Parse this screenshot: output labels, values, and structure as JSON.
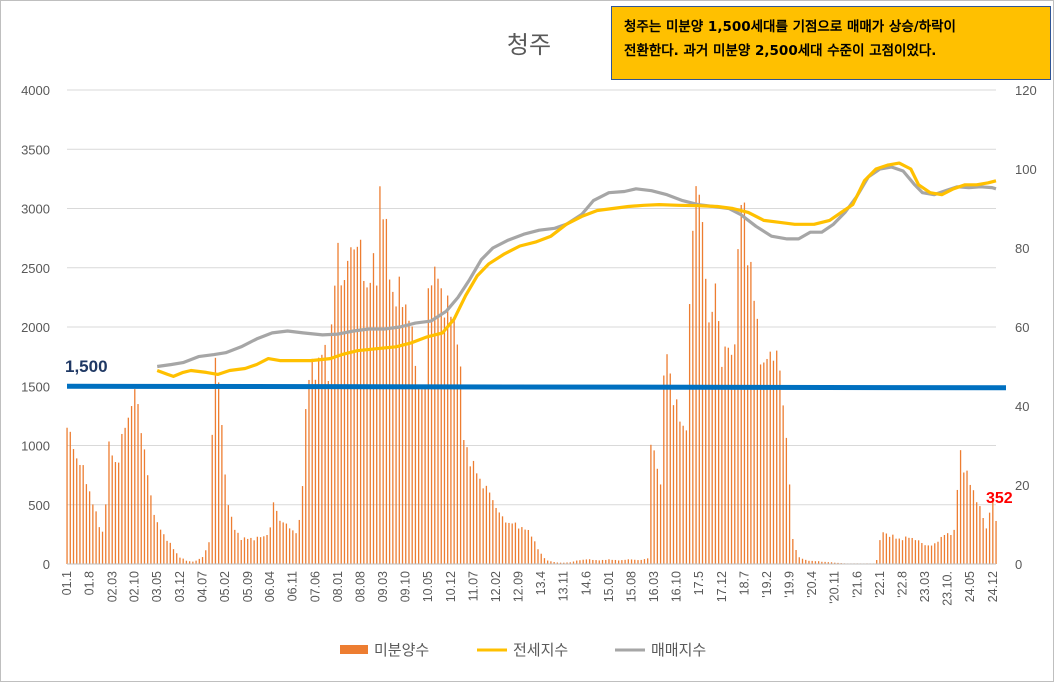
{
  "annotation": {
    "line1": "청주는 미분양 1,500세대를 기점으로 매매가 상승/하락이",
    "line2": "전환한다. 과거 미분양 2,500세대 수준이 고점이었다."
  },
  "chart_data": {
    "type": "bar+line",
    "title": "청주",
    "y_left": {
      "min": 0,
      "max": 4000,
      "ticks": [
        "0",
        "500",
        "1000",
        "1500",
        "2000",
        "2500",
        "3000",
        "3500",
        "4000"
      ]
    },
    "y_right": {
      "min": 0,
      "max": 120,
      "ticks": [
        "0",
        "20",
        "40",
        "60",
        "80",
        "100",
        "120"
      ]
    },
    "x_range": [
      2001.0,
      2025.0
    ],
    "x_ticks": [
      {
        "t": 2001.0,
        "label": "01.1"
      },
      {
        "t": 2001.58,
        "label": "01.8"
      },
      {
        "t": 2002.17,
        "label": "02.03"
      },
      {
        "t": 2002.75,
        "label": "02.10"
      },
      {
        "t": 2003.33,
        "label": "03.05"
      },
      {
        "t": 2003.92,
        "label": "03.12"
      },
      {
        "t": 2004.5,
        "label": "04.07"
      },
      {
        "t": 2005.08,
        "label": "05.02"
      },
      {
        "t": 2005.67,
        "label": "05.09"
      },
      {
        "t": 2006.25,
        "label": "06.04"
      },
      {
        "t": 2006.83,
        "label": "06.11"
      },
      {
        "t": 2007.42,
        "label": "07.06"
      },
      {
        "t": 2008.0,
        "label": "08.01"
      },
      {
        "t": 2008.58,
        "label": "08.08"
      },
      {
        "t": 2009.17,
        "label": "09.03"
      },
      {
        "t": 2009.75,
        "label": "09.10"
      },
      {
        "t": 2010.33,
        "label": "10.05"
      },
      {
        "t": 2010.92,
        "label": "10.12"
      },
      {
        "t": 2011.5,
        "label": "11.07"
      },
      {
        "t": 2012.08,
        "label": "12.02"
      },
      {
        "t": 2012.67,
        "label": "12.09"
      },
      {
        "t": 2013.25,
        "label": "13.4"
      },
      {
        "t": 2013.83,
        "label": "13.11"
      },
      {
        "t": 2014.42,
        "label": "14.6"
      },
      {
        "t": 2015.0,
        "label": "15.01"
      },
      {
        "t": 2015.58,
        "label": "15.08"
      },
      {
        "t": 2016.17,
        "label": "16.03"
      },
      {
        "t": 2016.75,
        "label": "16.10"
      },
      {
        "t": 2017.33,
        "label": "17.5"
      },
      {
        "t": 2017.92,
        "label": "17.12"
      },
      {
        "t": 2018.5,
        "label": "18.7"
      },
      {
        "t": 2019.08,
        "label": "'19.2"
      },
      {
        "t": 2019.67,
        "label": "'19.9"
      },
      {
        "t": 2020.25,
        "label": "'20.4"
      },
      {
        "t": 2020.83,
        "label": "'20.11"
      },
      {
        "t": 2021.42,
        "label": "'21.6"
      },
      {
        "t": 2022.0,
        "label": "'22.1"
      },
      {
        "t": 2022.58,
        "label": "'22.8"
      },
      {
        "t": 2023.17,
        "label": "23.03"
      },
      {
        "t": 2023.75,
        "label": "23.10."
      },
      {
        "t": 2024.33,
        "label": "24.05"
      },
      {
        "t": 2024.92,
        "label": "24.12"
      }
    ],
    "unsold_series": {
      "name": "미분양수",
      "color": "#ed7d31",
      "points": [
        [
          2001.0,
          1150
        ],
        [
          2001.2,
          950
        ],
        [
          2001.4,
          800
        ],
        [
          2001.6,
          600
        ],
        [
          2001.8,
          350
        ],
        [
          2001.95,
          250
        ],
        [
          2002.1,
          1050
        ],
        [
          2002.3,
          800
        ],
        [
          2002.5,
          1200
        ],
        [
          2002.65,
          1300
        ],
        [
          2002.8,
          1480
        ],
        [
          2002.95,
          1050
        ],
        [
          2003.1,
          700
        ],
        [
          2003.3,
          350
        ],
        [
          2003.5,
          250
        ],
        [
          2003.7,
          150
        ],
        [
          2003.9,
          60
        ],
        [
          2004.1,
          25
        ],
        [
          2004.3,
          20
        ],
        [
          2004.5,
          60
        ],
        [
          2004.7,
          200
        ],
        [
          2004.8,
          1950
        ],
        [
          2004.95,
          1400
        ],
        [
          2005.1,
          650
        ],
        [
          2005.3,
          300
        ],
        [
          2005.5,
          220
        ],
        [
          2005.7,
          210
        ],
        [
          2005.9,
          220
        ],
        [
          2006.1,
          230
        ],
        [
          2006.25,
          300
        ],
        [
          2006.35,
          550
        ],
        [
          2006.45,
          400
        ],
        [
          2006.6,
          340
        ],
        [
          2006.8,
          300
        ],
        [
          2006.95,
          250
        ],
        [
          2007.05,
          450
        ],
        [
          2007.2,
          1550
        ],
        [
          2007.4,
          1650
        ],
        [
          2007.6,
          1800
        ],
        [
          2007.75,
          1650
        ],
        [
          2007.9,
          2300
        ],
        [
          2008.0,
          2580
        ],
        [
          2008.15,
          2400
        ],
        [
          2008.3,
          2550
        ],
        [
          2008.45,
          2800
        ],
        [
          2008.55,
          2700
        ],
        [
          2008.7,
          2300
        ],
        [
          2008.85,
          2500
        ],
        [
          2009.0,
          2400
        ],
        [
          2009.1,
          3350
        ],
        [
          2009.25,
          2700
        ],
        [
          2009.4,
          2300
        ],
        [
          2009.6,
          2250
        ],
        [
          2009.8,
          2200
        ],
        [
          2009.95,
          1800
        ],
        [
          2010.1,
          1500
        ],
        [
          2010.25,
          1450
        ],
        [
          2010.35,
          2500
        ],
        [
          2010.5,
          2450
        ],
        [
          2010.65,
          2300
        ],
        [
          2010.8,
          2200
        ],
        [
          2010.95,
          2050
        ],
        [
          2011.1,
          2000
        ],
        [
          2011.25,
          1050
        ],
        [
          2011.4,
          900
        ],
        [
          2011.6,
          750
        ],
        [
          2011.8,
          650
        ],
        [
          2012.0,
          550
        ],
        [
          2012.2,
          400
        ],
        [
          2012.4,
          350
        ],
        [
          2012.6,
          330
        ],
        [
          2012.8,
          300
        ],
        [
          2013.0,
          250
        ],
        [
          2013.2,
          100
        ],
        [
          2013.4,
          30
        ],
        [
          2013.6,
          15
        ],
        [
          2013.8,
          10
        ],
        [
          2014.0,
          15
        ],
        [
          2014.2,
          30
        ],
        [
          2014.4,
          40
        ],
        [
          2014.6,
          35
        ],
        [
          2014.8,
          30
        ],
        [
          2015.0,
          40
        ],
        [
          2015.2,
          30
        ],
        [
          2015.4,
          35
        ],
        [
          2015.6,
          40
        ],
        [
          2015.8,
          30
        ],
        [
          2016.0,
          50
        ],
        [
          2016.1,
          1150
        ],
        [
          2016.2,
          850
        ],
        [
          2016.35,
          700
        ],
        [
          2016.45,
          1900
        ],
        [
          2016.6,
          1550
        ],
        [
          2016.75,
          1300
        ],
        [
          2016.9,
          1150
        ],
        [
          2017.0,
          1200
        ],
        [
          2017.15,
          2750
        ],
        [
          2017.3,
          3450
        ],
        [
          2017.45,
          2550
        ],
        [
          2017.6,
          2050
        ],
        [
          2017.75,
          2300
        ],
        [
          2017.9,
          1750
        ],
        [
          2018.05,
          1850
        ],
        [
          2018.2,
          1650
        ],
        [
          2018.4,
          3050
        ],
        [
          2018.55,
          2850
        ],
        [
          2018.7,
          2350
        ],
        [
          2018.85,
          1950
        ],
        [
          2019.0,
          1650
        ],
        [
          2019.15,
          1750
        ],
        [
          2019.3,
          1850
        ],
        [
          2019.45,
          1500
        ],
        [
          2019.6,
          1050
        ],
        [
          2019.75,
          200
        ],
        [
          2019.9,
          60
        ],
        [
          2020.1,
          30
        ],
        [
          2020.3,
          25
        ],
        [
          2020.5,
          20
        ],
        [
          2020.7,
          15
        ],
        [
          2020.9,
          10
        ],
        [
          2021.1,
          5
        ],
        [
          2021.3,
          5
        ],
        [
          2021.5,
          5
        ],
        [
          2021.7,
          5
        ],
        [
          2021.9,
          5
        ],
        [
          2022.05,
          280
        ],
        [
          2022.2,
          250
        ],
        [
          2022.4,
          220
        ],
        [
          2022.6,
          210
        ],
        [
          2022.8,
          230
        ],
        [
          2023.0,
          190
        ],
        [
          2023.2,
          160
        ],
        [
          2023.35,
          150
        ],
        [
          2023.5,
          200
        ],
        [
          2023.65,
          240
        ],
        [
          2023.8,
          260
        ],
        [
          2023.95,
          280
        ],
        [
          2024.05,
          970
        ],
        [
          2024.2,
          800
        ],
        [
          2024.35,
          650
        ],
        [
          2024.5,
          560
        ],
        [
          2024.6,
          450
        ],
        [
          2024.75,
          300
        ],
        [
          2024.9,
          580
        ],
        [
          2025.0,
          352
        ]
      ]
    },
    "jeonse_index": {
      "name": "전세지수",
      "color": "#ffc000",
      "points": [
        [
          2003.33,
          49
        ],
        [
          2003.6,
          48
        ],
        [
          2003.75,
          47.5
        ],
        [
          2004.0,
          48.5
        ],
        [
          2004.2,
          49
        ],
        [
          2004.6,
          48.5
        ],
        [
          2004.9,
          48
        ],
        [
          2005.2,
          49
        ],
        [
          2005.6,
          49.5
        ],
        [
          2005.9,
          50.5
        ],
        [
          2006.2,
          52
        ],
        [
          2006.5,
          51.5
        ],
        [
          2006.9,
          51.5
        ],
        [
          2007.3,
          51.5
        ],
        [
          2007.8,
          52
        ],
        [
          2008.1,
          53
        ],
        [
          2008.5,
          54
        ],
        [
          2009.0,
          54.5
        ],
        [
          2009.5,
          55
        ],
        [
          2009.9,
          56
        ],
        [
          2010.3,
          57.5
        ],
        [
          2010.7,
          58.5
        ],
        [
          2011.0,
          62
        ],
        [
          2011.3,
          68
        ],
        [
          2011.6,
          73
        ],
        [
          2011.9,
          76
        ],
        [
          2012.3,
          78.5
        ],
        [
          2012.7,
          80.5
        ],
        [
          2013.1,
          81.5
        ],
        [
          2013.5,
          83
        ],
        [
          2013.9,
          86
        ],
        [
          2014.3,
          88
        ],
        [
          2014.7,
          89.5
        ],
        [
          2015.1,
          90
        ],
        [
          2015.5,
          90.5
        ],
        [
          2015.9,
          90.8
        ],
        [
          2016.3,
          91
        ],
        [
          2016.8,
          90.8
        ],
        [
          2017.3,
          90.7
        ],
        [
          2017.8,
          90.5
        ],
        [
          2018.2,
          90
        ],
        [
          2018.6,
          89
        ],
        [
          2019.0,
          87
        ],
        [
          2019.4,
          86.5
        ],
        [
          2019.8,
          86
        ],
        [
          2020.3,
          86
        ],
        [
          2020.7,
          87
        ],
        [
          2021.0,
          89
        ],
        [
          2021.3,
          91
        ],
        [
          2021.6,
          97
        ],
        [
          2021.9,
          100
        ],
        [
          2022.2,
          101
        ],
        [
          2022.5,
          101.5
        ],
        [
          2022.8,
          100
        ],
        [
          2023.0,
          96
        ],
        [
          2023.3,
          94
        ],
        [
          2023.6,
          93.5
        ],
        [
          2023.9,
          95
        ],
        [
          2024.2,
          96
        ],
        [
          2024.5,
          96
        ],
        [
          2024.8,
          96.5
        ],
        [
          2025.0,
          97
        ]
      ]
    },
    "sale_index": {
      "name": "매매지수",
      "color": "#a6a6a6",
      "points": [
        [
          2003.33,
          50
        ],
        [
          2003.7,
          50.5
        ],
        [
          2004.0,
          51
        ],
        [
          2004.4,
          52.5
        ],
        [
          2004.8,
          53
        ],
        [
          2005.1,
          53.5
        ],
        [
          2005.5,
          55
        ],
        [
          2005.9,
          57
        ],
        [
          2006.3,
          58.5
        ],
        [
          2006.7,
          59
        ],
        [
          2007.1,
          58.5
        ],
        [
          2007.6,
          58
        ],
        [
          2008.0,
          58.2
        ],
        [
          2008.4,
          59
        ],
        [
          2008.8,
          59.5
        ],
        [
          2009.2,
          59.5
        ],
        [
          2009.6,
          60
        ],
        [
          2010.0,
          61
        ],
        [
          2010.4,
          61.5
        ],
        [
          2010.8,
          64
        ],
        [
          2011.1,
          67.5
        ],
        [
          2011.4,
          72
        ],
        [
          2011.7,
          77
        ],
        [
          2012.0,
          80
        ],
        [
          2012.4,
          82
        ],
        [
          2012.8,
          83.5
        ],
        [
          2013.2,
          84.5
        ],
        [
          2013.6,
          85
        ],
        [
          2013.9,
          86
        ],
        [
          2014.3,
          88.5
        ],
        [
          2014.6,
          92
        ],
        [
          2015.0,
          94
        ],
        [
          2015.4,
          94.3
        ],
        [
          2015.7,
          95
        ],
        [
          2016.1,
          94.5
        ],
        [
          2016.5,
          93.5
        ],
        [
          2016.9,
          92
        ],
        [
          2017.3,
          91
        ],
        [
          2017.7,
          90.5
        ],
        [
          2018.1,
          90
        ],
        [
          2018.4,
          88.5
        ],
        [
          2018.8,
          85.5
        ],
        [
          2019.2,
          83
        ],
        [
          2019.6,
          82.3
        ],
        [
          2019.9,
          82.3
        ],
        [
          2020.2,
          84
        ],
        [
          2020.5,
          84
        ],
        [
          2020.8,
          86
        ],
        [
          2021.1,
          89
        ],
        [
          2021.4,
          93
        ],
        [
          2021.7,
          98
        ],
        [
          2022.0,
          100
        ],
        [
          2022.3,
          100.5
        ],
        [
          2022.6,
          99.5
        ],
        [
          2022.9,
          96
        ],
        [
          2023.1,
          94
        ],
        [
          2023.4,
          93.5
        ],
        [
          2023.7,
          94.5
        ],
        [
          2024.0,
          95.5
        ],
        [
          2024.3,
          95.3
        ],
        [
          2024.6,
          95.5
        ],
        [
          2024.9,
          95.3
        ],
        [
          2025.0,
          95
        ]
      ]
    },
    "reference_line": {
      "value": 1500,
      "label": "1,500",
      "color": "#0070c0"
    },
    "end_label": {
      "value": 352,
      "label": "352",
      "color": "#ff0000"
    },
    "legend": [
      "미분양수",
      "전세지수",
      "매매지수"
    ],
    "legend_position": "bottom",
    "grid": "horizontal"
  }
}
